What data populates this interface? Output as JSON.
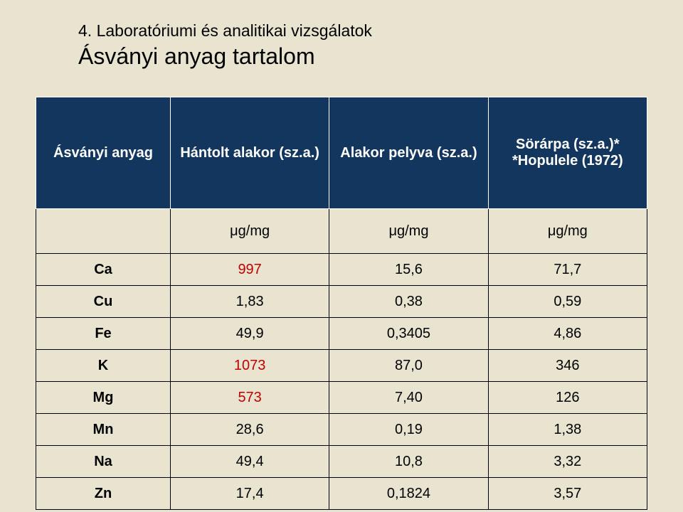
{
  "heading": {
    "line1": "4. Laboratóriumi és analitikai vizsgálatok",
    "line2": "Ásványi anyag tartalom"
  },
  "table": {
    "header": {
      "col0": "Ásványi anyag",
      "col1": "Hántolt alakor (sz.a.)",
      "col2": "Alakor pelyva (sz.a.)",
      "col3": "Sörárpa (sz.a.)* *Hopulele (1972)"
    },
    "units": {
      "col0": "",
      "col1": "μg/mg",
      "col2": "μg/mg",
      "col3": "μg/mg"
    },
    "rows": [
      {
        "label": "Ca",
        "v1": "997",
        "v2": "15,6",
        "v3": "71,7",
        "red": true
      },
      {
        "label": "Cu",
        "v1": "1,83",
        "v2": "0,38",
        "v3": "0,59",
        "red": false
      },
      {
        "label": "Fe",
        "v1": "49,9",
        "v2": "0,3405",
        "v3": "4,86",
        "red": false
      },
      {
        "label": "K",
        "v1": "1073",
        "v2": "87,0",
        "v3": "346",
        "red": true
      },
      {
        "label": "Mg",
        "v1": "573",
        "v2": "7,40",
        "v3": "126",
        "red": true
      },
      {
        "label": "Mn",
        "v1": "28,6",
        "v2": "0,19",
        "v3": "1,38",
        "red": false
      },
      {
        "label": "Na",
        "v1": "49,4",
        "v2": "10,8",
        "v3": "3,32",
        "red": false
      },
      {
        "label": "Zn",
        "v1": "17,4",
        "v2": "0,1824",
        "v3": "3,57",
        "red": false
      }
    ],
    "styling": {
      "header_bg": "#13365e",
      "header_text": "#ffffff",
      "cell_border": "#000000",
      "red_value_color": "#c00000",
      "body_text_color": "#000000",
      "background": "#e8e4d0",
      "header_fontsize": 20,
      "body_fontsize": 20,
      "heading_line1_fontsize": 23,
      "heading_line2_fontsize": 32
    }
  }
}
